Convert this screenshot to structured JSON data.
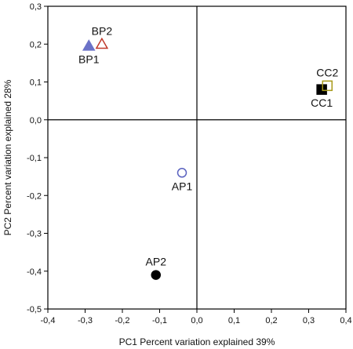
{
  "chart_data": {
    "type": "scatter",
    "xlabel": "PC1 Percent variation explained 39%",
    "ylabel": "PC2 Percent variation explained 28%",
    "xlim": [
      -0.4,
      0.4
    ],
    "ylim": [
      -0.5,
      0.3
    ],
    "x_ticks": [
      "-0,4",
      "-0,3",
      "-0,2",
      "-0,1",
      "0,0",
      "0,1",
      "0,2",
      "0,3",
      "0,4"
    ],
    "y_ticks": [
      "0,3",
      "0,2",
      "0,1",
      "0,0",
      "-0,1",
      "-0,2",
      "-0,3",
      "-0,4",
      "-0,5"
    ],
    "grid": false,
    "zero_lines": true,
    "points": [
      {
        "label": "BP1",
        "x": -0.29,
        "y": 0.195,
        "marker": "triangle-filled",
        "color": "#6b72c8",
        "label_pos": "below"
      },
      {
        "label": "BP2",
        "x": -0.255,
        "y": 0.2,
        "marker": "triangle-open",
        "color": "#c0392b",
        "label_pos": "above"
      },
      {
        "label": "CC1",
        "x": 0.335,
        "y": 0.08,
        "marker": "square-filled",
        "color": "#000000",
        "label_pos": "below"
      },
      {
        "label": "CC2",
        "x": 0.35,
        "y": 0.09,
        "marker": "square-open",
        "color": "#a89a1a",
        "label_pos": "above"
      },
      {
        "label": "AP1",
        "x": -0.04,
        "y": -0.14,
        "marker": "circle-open",
        "color": "#5b63c0",
        "label_pos": "below"
      },
      {
        "label": "AP2",
        "x": -0.11,
        "y": -0.41,
        "marker": "circle-filled",
        "color": "#000000",
        "label_pos": "above"
      }
    ]
  }
}
